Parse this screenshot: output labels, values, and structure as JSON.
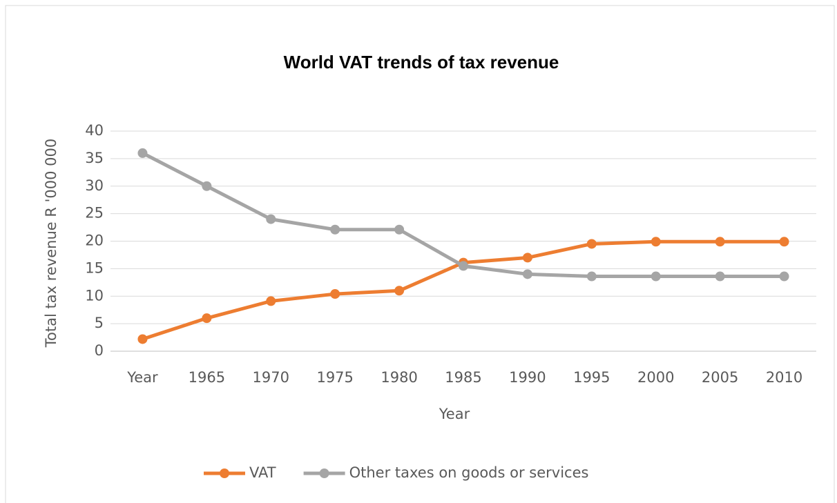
{
  "chart_data": {
    "type": "line",
    "title": "World VAT trends of tax revenue",
    "x_label": "Year",
    "y_label": "Total tax revenue R '000 000",
    "categories": [
      "Year",
      "1965",
      "1970",
      "1975",
      "1980",
      "1985",
      "1990",
      "1995",
      "2000",
      "2005",
      "2010"
    ],
    "series": [
      {
        "name": "VAT",
        "color": "#ed7d31",
        "values": [
          2.2,
          6,
          9.1,
          10.4,
          11,
          16.1,
          17,
          19.5,
          19.9,
          19.9,
          19.9
        ]
      },
      {
        "name": "Other taxes on goods or services",
        "color": "#a5a5a5",
        "values": [
          36,
          30,
          24,
          22.1,
          22.1,
          15.5,
          14,
          13.6,
          13.6,
          13.6,
          13.6
        ]
      }
    ],
    "ylim": [
      0,
      40
    ],
    "yticks": [
      0,
      5,
      10,
      15,
      20,
      25,
      30,
      35,
      40
    ],
    "grid": true,
    "legend": "bottom"
  }
}
